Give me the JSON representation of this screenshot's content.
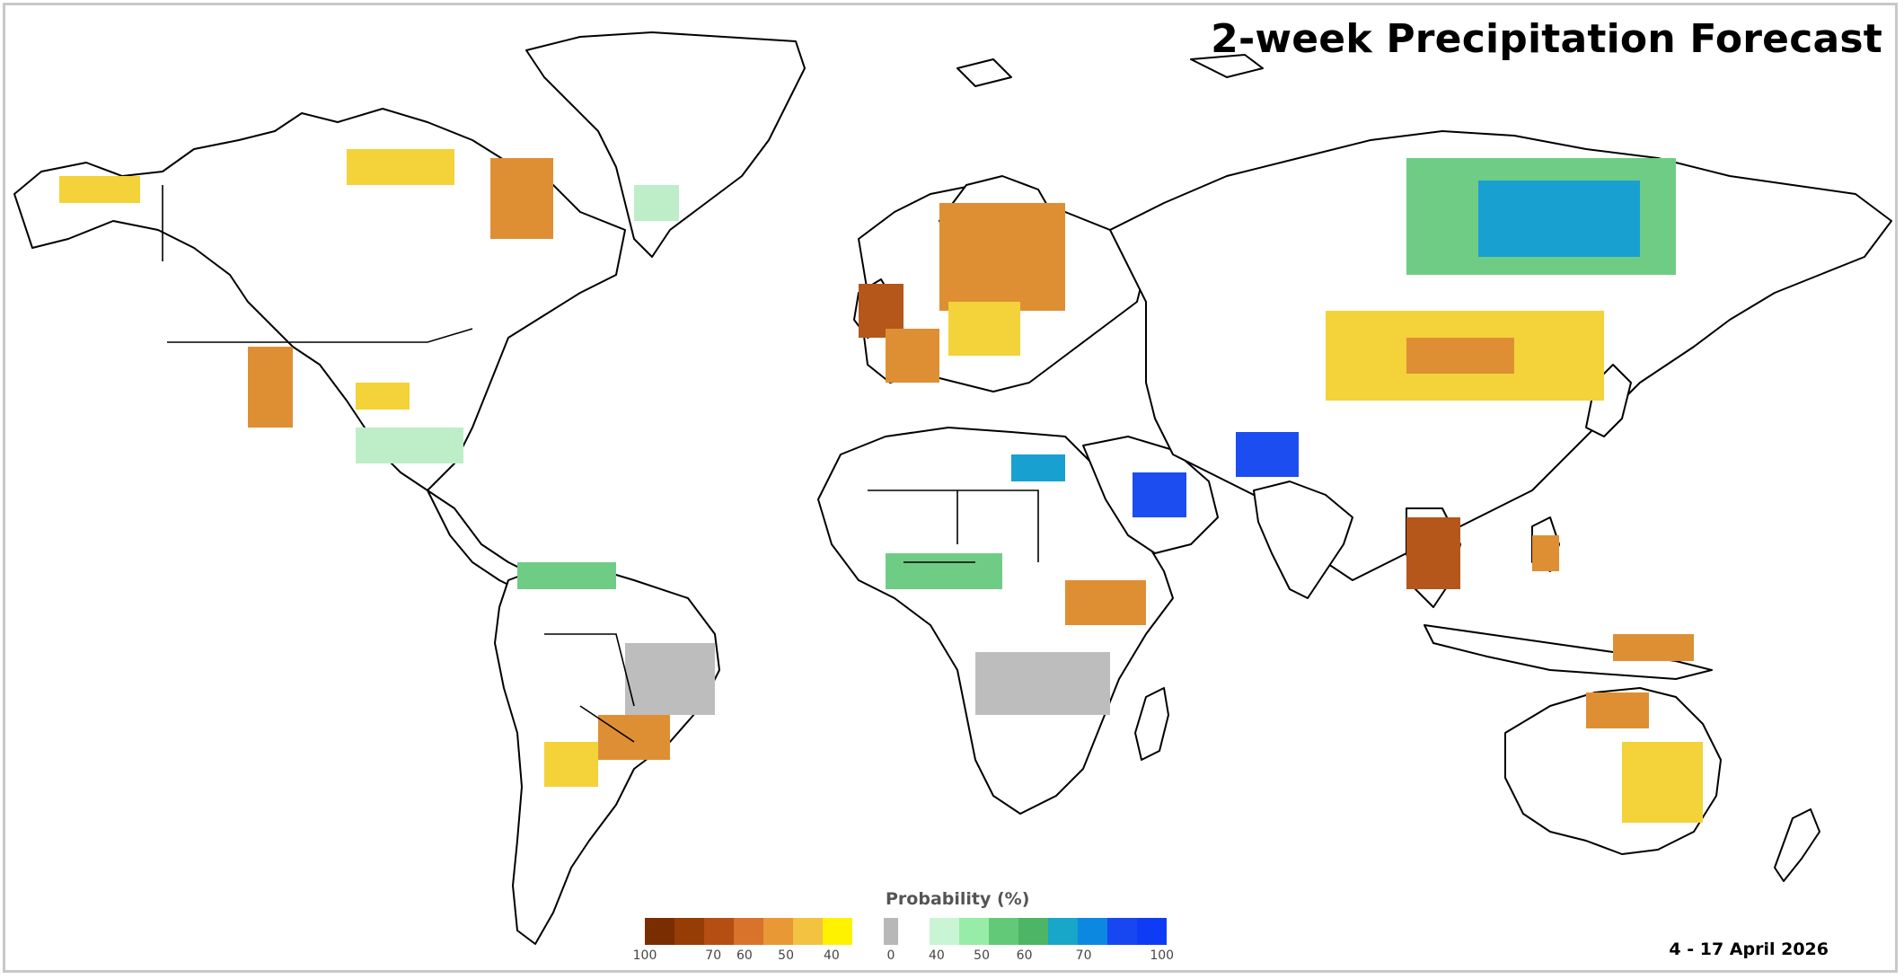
{
  "title": "2-week Precipitation Forecast",
  "date_range": "4 - 17 April 2026",
  "legend": {
    "title": "Probability (%)",
    "dry_colors": [
      "#7a2e00",
      "#963c05",
      "#b54e12",
      "#d9722a",
      "#e89835",
      "#f2c240",
      "#fff200"
    ],
    "neutral_color": "#b8b8b8",
    "wet_colors": [
      "#c9f5d4",
      "#97eca7",
      "#62c978",
      "#4cb566",
      "#18a6c9",
      "#0d88e0",
      "#1747f0",
      "#0e3cf5"
    ],
    "dry_ticks": [
      "100",
      "70",
      "60",
      "50",
      "40"
    ],
    "neutral_tick": "0",
    "wet_ticks": [
      "40",
      "50",
      "60",
      "70",
      "100"
    ]
  },
  "palette": {
    "dry_strong": "#b5561a",
    "dry_medium": "#de8f34",
    "dry_light": "#f3d23a",
    "wet_light": "#bdeec8",
    "wet_medium": "#6fcc85",
    "wet_strong": "#18a0d0",
    "wet_max": "#1c4df0",
    "neutral": "#bdbdbd",
    "coast": "#000000"
  }
}
